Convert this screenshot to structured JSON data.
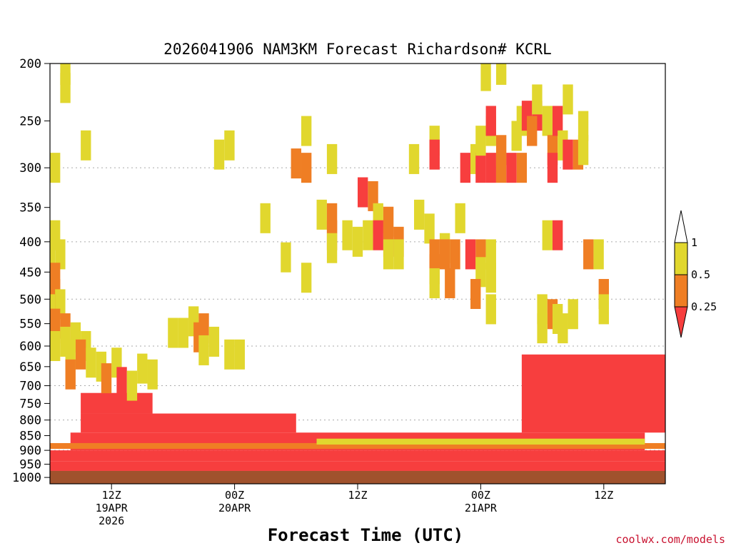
{
  "chart_data": {
    "type": "heatmap",
    "title": "2026041906 NAM3KM Forecast Richardson# KCRL",
    "xlabel": "Forecast Time (UTC)",
    "ylabel": "",
    "y_ticks": [
      "200",
      "250",
      "300",
      "350",
      "400",
      "450",
      "500",
      "550",
      "600",
      "650",
      "700",
      "750",
      "800",
      "850",
      "900",
      "950",
      "1000"
    ],
    "y_range_hpa": [
      200,
      1025
    ],
    "dotted_gridlines_hpa": [
      300,
      400,
      500,
      600,
      700,
      800,
      900,
      1000
    ],
    "x_range_hours": [
      0,
      60
    ],
    "x_ticks": [
      {
        "hour": 6,
        "time": "12Z",
        "date": "19APR",
        "year": "2026"
      },
      {
        "hour": 18,
        "time": "00Z",
        "date": "20APR",
        "year": ""
      },
      {
        "hour": 30,
        "time": "12Z",
        "date": "",
        "year": ""
      },
      {
        "hour": 42,
        "time": "00Z",
        "date": "21APR",
        "year": ""
      },
      {
        "hour": 54,
        "time": "12Z",
        "date": "",
        "year": ""
      }
    ],
    "legend": [
      {
        "label": "1",
        "color": "#ffffff"
      },
      {
        "label": "0.5",
        "color": "#e1d72e"
      },
      {
        "label": "0.25",
        "color": "#ef7e24"
      },
      {
        "label": "",
        "color": "#f73e3e"
      }
    ],
    "ground_color": "#a0522d",
    "ground_hpa": 975,
    "cells": [
      {
        "t": 1.5,
        "p": 205,
        "c": 1
      },
      {
        "t": 1.5,
        "p": 220,
        "c": 1
      },
      {
        "t": 3.5,
        "p": 275,
        "c": 1
      },
      {
        "t": 0.5,
        "p": 300,
        "c": 1
      },
      {
        "t": 0,
        "p": 410,
        "c": 1
      },
      {
        "t": 1,
        "p": 420,
        "c": 1
      },
      {
        "t": 0.5,
        "p": 390,
        "c": 1
      },
      {
        "t": 0.5,
        "p": 460,
        "c": 2
      },
      {
        "t": 0.5,
        "p": 490,
        "c": 2
      },
      {
        "t": 0,
        "p": 520,
        "c": 1
      },
      {
        "t": 1,
        "p": 510,
        "c": 1
      },
      {
        "t": 0.5,
        "p": 550,
        "c": 2
      },
      {
        "t": 1.5,
        "p": 560,
        "c": 2
      },
      {
        "t": 0.5,
        "p": 600,
        "c": 1
      },
      {
        "t": 1.5,
        "p": 590,
        "c": 1
      },
      {
        "t": 2.5,
        "p": 580,
        "c": 1
      },
      {
        "t": 3.5,
        "p": 600,
        "c": 1
      },
      {
        "t": 3,
        "p": 620,
        "c": 2
      },
      {
        "t": 2,
        "p": 620,
        "c": 1
      },
      {
        "t": 4,
        "p": 640,
        "c": 1
      },
      {
        "t": 5,
        "p": 650,
        "c": 1
      },
      {
        "t": 6.5,
        "p": 640,
        "c": 1
      },
      {
        "t": 9,
        "p": 655,
        "c": 1
      },
      {
        "t": 10,
        "p": 670,
        "c": 1
      },
      {
        "t": 2,
        "p": 670,
        "c": 2
      },
      {
        "t": 5.5,
        "p": 680,
        "c": 2
      },
      {
        "t": 7,
        "p": 690,
        "c": 3
      },
      {
        "t": 8,
        "p": 700,
        "c": 1
      },
      {
        "t": 12,
        "p": 570,
        "c": 1
      },
      {
        "t": 13,
        "p": 570,
        "c": 1
      },
      {
        "t": 14,
        "p": 545,
        "c": 1
      },
      {
        "t": 15,
        "p": 560,
        "c": 2
      },
      {
        "t": 14.5,
        "p": 580,
        "c": 2
      },
      {
        "t": 16,
        "p": 590,
        "c": 1
      },
      {
        "t": 15,
        "p": 610,
        "c": 1
      },
      {
        "t": 17.5,
        "p": 620,
        "c": 1
      },
      {
        "t": 18.5,
        "p": 620,
        "c": 1
      },
      {
        "t": 16.5,
        "p": 285,
        "c": 1
      },
      {
        "t": 17.5,
        "p": 275,
        "c": 1
      },
      {
        "t": 25,
        "p": 260,
        "c": 1
      },
      {
        "t": 24,
        "p": 295,
        "c": 2
      },
      {
        "t": 25,
        "p": 300,
        "c": 2
      },
      {
        "t": 27.5,
        "p": 290,
        "c": 1
      },
      {
        "t": 21,
        "p": 365,
        "c": 1
      },
      {
        "t": 23,
        "p": 425,
        "c": 1
      },
      {
        "t": 25,
        "p": 460,
        "c": 1
      },
      {
        "t": 26.5,
        "p": 360,
        "c": 1
      },
      {
        "t": 27.5,
        "p": 365,
        "c": 2
      },
      {
        "t": 27.5,
        "p": 390,
        "c": 2
      },
      {
        "t": 27.5,
        "p": 410,
        "c": 1
      },
      {
        "t": 29,
        "p": 390,
        "c": 1
      },
      {
        "t": 30,
        "p": 400,
        "c": 1
      },
      {
        "t": 31,
        "p": 390,
        "c": 1
      },
      {
        "t": 30.5,
        "p": 330,
        "c": 3
      },
      {
        "t": 31.5,
        "p": 335,
        "c": 2
      },
      {
        "t": 32,
        "p": 365,
        "c": 1
      },
      {
        "t": 32,
        "p": 390,
        "c": 3
      },
      {
        "t": 33,
        "p": 370,
        "c": 2
      },
      {
        "t": 33,
        "p": 400,
        "c": 2
      },
      {
        "t": 34,
        "p": 400,
        "c": 2
      },
      {
        "t": 33,
        "p": 420,
        "c": 1
      },
      {
        "t": 34,
        "p": 420,
        "c": 1
      },
      {
        "t": 35.5,
        "p": 290,
        "c": 1
      },
      {
        "t": 36,
        "p": 360,
        "c": 1
      },
      {
        "t": 37,
        "p": 380,
        "c": 1
      },
      {
        "t": 37.5,
        "p": 270,
        "c": 1
      },
      {
        "t": 37.5,
        "p": 285,
        "c": 3
      },
      {
        "t": 38.5,
        "p": 410,
        "c": 1
      },
      {
        "t": 37.5,
        "p": 420,
        "c": 2
      },
      {
        "t": 38.5,
        "p": 420,
        "c": 2
      },
      {
        "t": 37.5,
        "p": 445,
        "c": 2
      },
      {
        "t": 37.5,
        "p": 470,
        "c": 1
      },
      {
        "t": 39,
        "p": 470,
        "c": 2
      },
      {
        "t": 39.5,
        "p": 420,
        "c": 2
      },
      {
        "t": 40,
        "p": 365,
        "c": 1
      },
      {
        "t": 40.5,
        "p": 300,
        "c": 3
      },
      {
        "t": 41.5,
        "p": 290,
        "c": 1
      },
      {
        "t": 41,
        "p": 420,
        "c": 3
      },
      {
        "t": 42,
        "p": 420,
        "c": 2
      },
      {
        "t": 42,
        "p": 450,
        "c": 1
      },
      {
        "t": 42,
        "p": 300,
        "c": 3
      },
      {
        "t": 42,
        "p": 270,
        "c": 1
      },
      {
        "t": 43,
        "p": 260,
        "c": 1
      },
      {
        "t": 43,
        "p": 300,
        "c": 3
      },
      {
        "t": 43,
        "p": 250,
        "c": 3
      },
      {
        "t": 44,
        "p": 280,
        "c": 2
      },
      {
        "t": 44,
        "p": 300,
        "c": 2
      },
      {
        "t": 45,
        "p": 300,
        "c": 3
      },
      {
        "t": 46,
        "p": 300,
        "c": 2
      },
      {
        "t": 46,
        "p": 250,
        "c": 1
      },
      {
        "t": 45.5,
        "p": 265,
        "c": 1
      },
      {
        "t": 43,
        "p": 420,
        "c": 1
      },
      {
        "t": 43,
        "p": 460,
        "c": 1
      },
      {
        "t": 41.5,
        "p": 490,
        "c": 2
      },
      {
        "t": 43,
        "p": 520,
        "c": 1
      },
      {
        "t": 42.5,
        "p": 210,
        "c": 1
      },
      {
        "t": 44,
        "p": 205,
        "c": 1
      },
      {
        "t": 46.5,
        "p": 245,
        "c": 3
      },
      {
        "t": 47.5,
        "p": 245,
        "c": 3
      },
      {
        "t": 47.5,
        "p": 230,
        "c": 1
      },
      {
        "t": 47,
        "p": 260,
        "c": 2
      },
      {
        "t": 48.5,
        "p": 250,
        "c": 1
      },
      {
        "t": 49,
        "p": 280,
        "c": 2
      },
      {
        "t": 49.5,
        "p": 250,
        "c": 3
      },
      {
        "t": 50,
        "p": 275,
        "c": 1
      },
      {
        "t": 50.5,
        "p": 285,
        "c": 3
      },
      {
        "t": 51.5,
        "p": 285,
        "c": 2
      },
      {
        "t": 52,
        "p": 280,
        "c": 1
      },
      {
        "t": 52,
        "p": 255,
        "c": 1
      },
      {
        "t": 50.5,
        "p": 230,
        "c": 1
      },
      {
        "t": 49,
        "p": 300,
        "c": 3
      },
      {
        "t": 48.5,
        "p": 390,
        "c": 1
      },
      {
        "t": 49.5,
        "p": 390,
        "c": 3
      },
      {
        "t": 48,
        "p": 520,
        "c": 1
      },
      {
        "t": 49,
        "p": 530,
        "c": 2
      },
      {
        "t": 48,
        "p": 560,
        "c": 1
      },
      {
        "t": 49.5,
        "p": 540,
        "c": 1
      },
      {
        "t": 50,
        "p": 560,
        "c": 1
      },
      {
        "t": 51,
        "p": 530,
        "c": 1
      },
      {
        "t": 52.5,
        "p": 420,
        "c": 2
      },
      {
        "t": 53.5,
        "p": 420,
        "c": 1
      },
      {
        "t": 54,
        "p": 490,
        "c": 2
      },
      {
        "t": 54,
        "p": 520,
        "c": 1
      }
    ],
    "bands": [
      {
        "t0": 0,
        "t1": 60,
        "p0": 940,
        "p1": 975,
        "c": 3
      },
      {
        "t0": 0,
        "t1": 60,
        "p0": 900,
        "p1": 940,
        "c": 3
      },
      {
        "t0": 2,
        "t1": 58,
        "p0": 840,
        "p1": 900,
        "c": 3
      },
      {
        "t0": 3,
        "t1": 24,
        "p0": 780,
        "p1": 840,
        "c": 3
      },
      {
        "t0": 3,
        "t1": 10,
        "p0": 720,
        "p1": 780,
        "c": 3
      },
      {
        "t0": 46,
        "t1": 60,
        "p0": 620,
        "p1": 840,
        "c": 3
      },
      {
        "t0": 0,
        "t1": 60,
        "p0": 875,
        "p1": 895,
        "c": 2
      },
      {
        "t0": 26,
        "t1": 58,
        "p0": 860,
        "p1": 880,
        "c": 1
      }
    ]
  },
  "credit": "coolwx.com/models"
}
